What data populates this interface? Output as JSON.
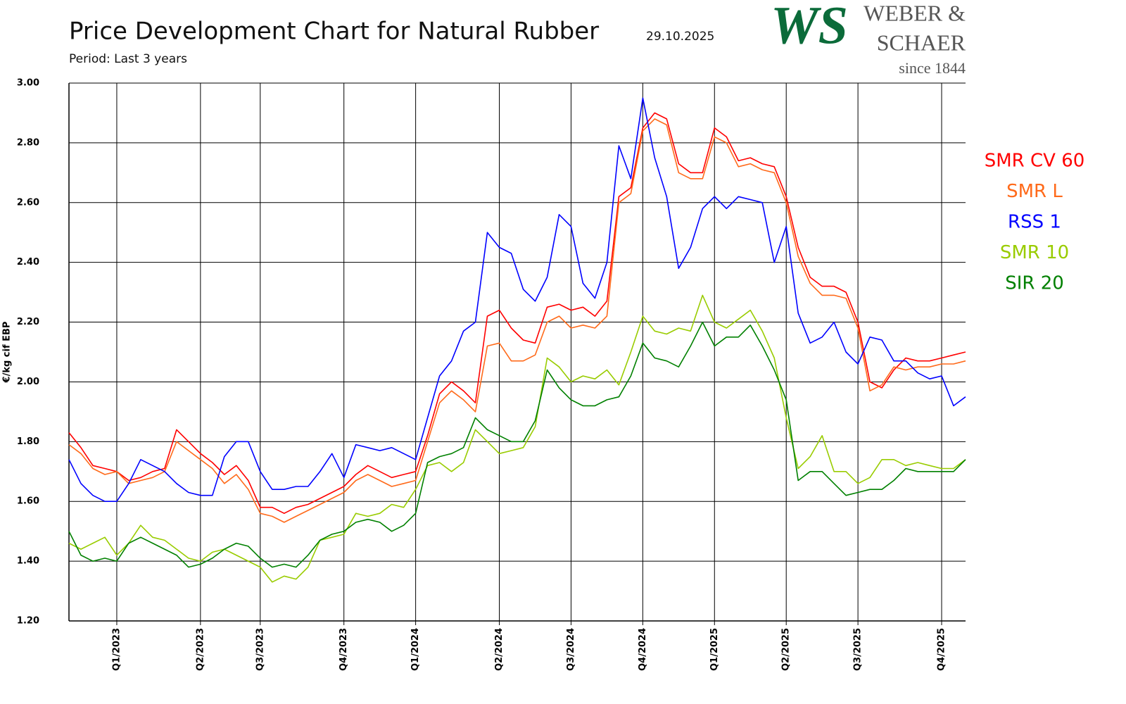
{
  "chart_data": {
    "type": "line",
    "title": "Price Development Chart for Natural Rubber",
    "date": "29.10.2025",
    "subtitle": "Period: Last 3 years",
    "y_label": "€/kg cif EBP",
    "grid": true,
    "legend": "right",
    "ylim": [
      1.2,
      3.0
    ],
    "yticks": [
      {
        "value": 1.2,
        "label": "1.20"
      },
      {
        "value": 1.4,
        "label": "1.40"
      },
      {
        "value": 1.6,
        "label": "1.60"
      },
      {
        "value": 1.8,
        "label": "1.80"
      },
      {
        "value": 2.0,
        "label": "2.00"
      },
      {
        "value": 2.2,
        "label": "2.20"
      },
      {
        "value": 2.4,
        "label": "2.40"
      },
      {
        "value": 2.6,
        "label": "2.60"
      },
      {
        "value": 2.8,
        "label": "2.80"
      },
      {
        "value": 3.0,
        "label": "3.00"
      }
    ],
    "categories": [
      null,
      null,
      null,
      null,
      "Q1/2023",
      null,
      null,
      null,
      null,
      null,
      null,
      "Q2/2023",
      null,
      null,
      null,
      null,
      "Q3/2023",
      null,
      null,
      null,
      null,
      null,
      null,
      "Q4/2023",
      null,
      null,
      null,
      null,
      null,
      "Q1/2024",
      null,
      null,
      null,
      null,
      null,
      null,
      "Q2/2024",
      null,
      null,
      null,
      null,
      null,
      "Q3/2024",
      null,
      null,
      null,
      null,
      null,
      "Q4/2024",
      null,
      null,
      null,
      null,
      null,
      "Q1/2025",
      null,
      null,
      null,
      null,
      null,
      "Q2/2025",
      null,
      null,
      null,
      null,
      null,
      "Q3/2025",
      null,
      null,
      null,
      null,
      null,
      null,
      "Q4/2025",
      null,
      null
    ],
    "series": [
      {
        "name": "SMR CV 60",
        "color": "#ff0000",
        "values": [
          1.83,
          1.78,
          1.72,
          1.71,
          1.7,
          1.67,
          1.68,
          1.7,
          1.71,
          1.84,
          1.8,
          1.76,
          1.73,
          1.69,
          1.72,
          1.67,
          1.58,
          1.58,
          1.56,
          1.58,
          1.59,
          1.61,
          1.63,
          1.65,
          1.69,
          1.72,
          1.7,
          1.68,
          1.69,
          1.7,
          1.82,
          1.96,
          2.0,
          1.97,
          1.93,
          2.22,
          2.24,
          2.18,
          2.14,
          2.13,
          2.25,
          2.26,
          2.24,
          2.25,
          2.22,
          2.27,
          2.62,
          2.65,
          2.85,
          2.9,
          2.88,
          2.73,
          2.7,
          2.7,
          2.85,
          2.82,
          2.74,
          2.75,
          2.73,
          2.72,
          2.62,
          2.45,
          2.35,
          2.32,
          2.32,
          2.3,
          2.2,
          2.0,
          1.98,
          2.04,
          2.08,
          2.07,
          2.07,
          2.08,
          2.09,
          2.1
        ]
      },
      {
        "name": "SMR L",
        "color": "#ff6a1a",
        "values": [
          1.79,
          1.76,
          1.71,
          1.69,
          1.7,
          1.66,
          1.67,
          1.68,
          1.7,
          1.8,
          1.77,
          1.74,
          1.71,
          1.66,
          1.69,
          1.64,
          1.56,
          1.55,
          1.53,
          1.55,
          1.57,
          1.59,
          1.61,
          1.63,
          1.67,
          1.69,
          1.67,
          1.65,
          1.66,
          1.67,
          1.8,
          1.93,
          1.97,
          1.94,
          1.9,
          2.12,
          2.13,
          2.07,
          2.07,
          2.09,
          2.2,
          2.22,
          2.18,
          2.19,
          2.18,
          2.22,
          2.6,
          2.63,
          2.84,
          2.88,
          2.86,
          2.7,
          2.68,
          2.68,
          2.82,
          2.8,
          2.72,
          2.73,
          2.71,
          2.7,
          2.6,
          2.42,
          2.33,
          2.29,
          2.29,
          2.28,
          2.18,
          1.97,
          1.99,
          2.05,
          2.04,
          2.05,
          2.05,
          2.06,
          2.06,
          2.07
        ]
      },
      {
        "name": "RSS 1",
        "color": "#0000ff",
        "values": [
          1.74,
          1.66,
          1.62,
          1.6,
          1.6,
          1.66,
          1.74,
          1.72,
          1.7,
          1.66,
          1.63,
          1.62,
          1.62,
          1.75,
          1.8,
          1.8,
          1.7,
          1.64,
          1.64,
          1.65,
          1.65,
          1.7,
          1.76,
          1.68,
          1.79,
          1.78,
          1.77,
          1.78,
          1.76,
          1.74,
          1.88,
          2.02,
          2.07,
          2.17,
          2.2,
          2.5,
          2.45,
          2.43,
          2.31,
          2.27,
          2.35,
          2.56,
          2.52,
          2.33,
          2.28,
          2.4,
          2.79,
          2.68,
          2.95,
          2.75,
          2.62,
          2.38,
          2.45,
          2.58,
          2.62,
          2.58,
          2.62,
          2.61,
          2.6,
          2.4,
          2.52,
          2.23,
          2.13,
          2.15,
          2.2,
          2.1,
          2.06,
          2.15,
          2.14,
          2.07,
          2.07,
          2.03,
          2.01,
          2.02,
          1.92,
          1.95
        ]
      },
      {
        "name": "SMR 10",
        "color": "#99cc00",
        "values": [
          1.46,
          1.44,
          1.46,
          1.48,
          1.42,
          1.46,
          1.52,
          1.48,
          1.47,
          1.44,
          1.41,
          1.4,
          1.43,
          1.44,
          1.42,
          1.4,
          1.38,
          1.33,
          1.35,
          1.34,
          1.38,
          1.47,
          1.48,
          1.49,
          1.56,
          1.55,
          1.56,
          1.59,
          1.58,
          1.64,
          1.72,
          1.73,
          1.7,
          1.73,
          1.84,
          1.8,
          1.76,
          1.77,
          1.78,
          1.85,
          2.08,
          2.05,
          2.0,
          2.02,
          2.01,
          2.04,
          1.99,
          2.1,
          2.22,
          2.17,
          2.16,
          2.18,
          2.17,
          2.29,
          2.2,
          2.18,
          2.21,
          2.24,
          2.17,
          2.08,
          1.88,
          1.71,
          1.75,
          1.82,
          1.7,
          1.7,
          1.66,
          1.68,
          1.74,
          1.74,
          1.72,
          1.73,
          1.72,
          1.71,
          1.71,
          1.74
        ]
      },
      {
        "name": "SIR 20",
        "color": "#008000",
        "values": [
          1.5,
          1.42,
          1.4,
          1.41,
          1.4,
          1.46,
          1.48,
          1.46,
          1.44,
          1.42,
          1.38,
          1.39,
          1.41,
          1.44,
          1.46,
          1.45,
          1.41,
          1.38,
          1.39,
          1.38,
          1.42,
          1.47,
          1.49,
          1.5,
          1.53,
          1.54,
          1.53,
          1.5,
          1.52,
          1.56,
          1.73,
          1.75,
          1.76,
          1.78,
          1.88,
          1.84,
          1.82,
          1.8,
          1.8,
          1.87,
          2.04,
          1.98,
          1.94,
          1.92,
          1.92,
          1.94,
          1.95,
          2.02,
          2.13,
          2.08,
          2.07,
          2.05,
          2.12,
          2.2,
          2.12,
          2.15,
          2.15,
          2.19,
          2.12,
          2.04,
          1.94,
          1.67,
          1.7,
          1.7,
          1.66,
          1.62,
          1.63,
          1.64,
          1.64,
          1.67,
          1.71,
          1.7,
          1.7,
          1.7,
          1.7,
          1.74
        ]
      }
    ]
  },
  "logo": {
    "mark": "WS",
    "line1": "WEBER &",
    "line2": "SCHAER",
    "line3": "since 1844"
  }
}
